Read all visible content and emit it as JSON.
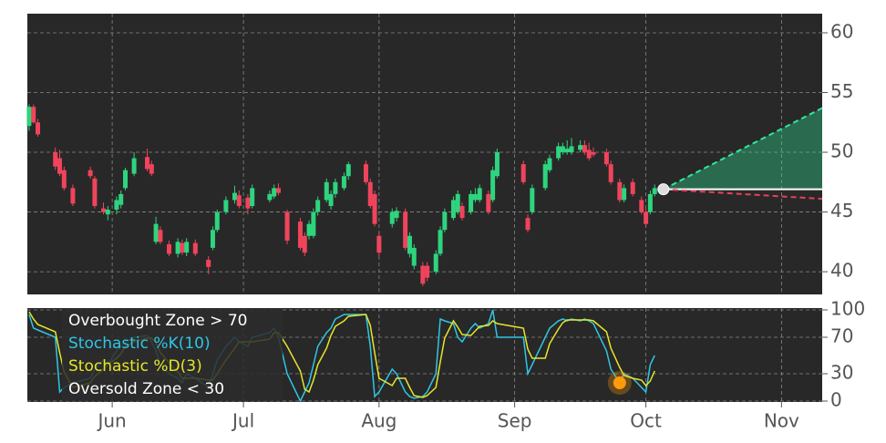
{
  "chart_data": [
    {
      "type": "candlestick",
      "x": [
        1,
        2,
        3,
        7,
        8,
        9,
        11,
        15,
        16,
        18,
        19,
        21,
        22,
        23,
        25,
        28,
        29,
        30,
        31,
        33,
        35,
        36,
        37,
        39,
        42,
        43,
        44,
        46,
        48,
        49,
        51,
        52,
        56,
        57,
        58,
        60,
        63,
        64,
        65,
        66,
        67,
        69,
        70,
        71,
        73,
        74,
        78,
        79,
        80,
        81,
        84,
        85,
        87,
        88,
        89,
        91,
        92,
        94,
        95,
        96,
        98,
        99,
        100,
        102,
        103,
        104,
        106,
        107,
        108,
        114,
        115,
        116,
        119,
        120,
        122,
        123,
        124,
        125,
        127,
        128,
        129,
        130,
        133,
        134,
        136,
        137,
        139,
        141,
        142,
        143,
        144
      ],
      "open": [
        52.2,
        53.8,
        52.5,
        50,
        49.5,
        48.5,
        47,
        48.5,
        47.8,
        45.3,
        44.8,
        45.2,
        45.6,
        47,
        48.2,
        49.6,
        49,
        42.5,
        43.5,
        42.3,
        41.5,
        42.4,
        41.6,
        42.4,
        41,
        42,
        43.5,
        45,
        46,
        46.4,
        46.2,
        45.5,
        46,
        46.3,
        47,
        45,
        44.2,
        43,
        43,
        43,
        45,
        46,
        45.5,
        46.5,
        47,
        48,
        49,
        47.5,
        46.5,
        43,
        44,
        44.5,
        45,
        41.5,
        40.5,
        40.5,
        40.5,
        40,
        41.5,
        43.5,
        44.5,
        45,
        45.5,
        45,
        46,
        46,
        46.5,
        46,
        48,
        49,
        44.5,
        45,
        47,
        48.5,
        49.5,
        50,
        50,
        50,
        50.2,
        50.6,
        50.2,
        50,
        50,
        49,
        47.5,
        46,
        47.5,
        46,
        45,
        45,
        46.5
      ],
      "high": [
        54,
        54,
        52.8,
        50.4,
        50.2,
        48.8,
        47.3,
        48.8,
        48,
        45.8,
        45.5,
        46.3,
        46.8,
        48.7,
        50,
        50.3,
        49.3,
        44.6,
        43.8,
        42.6,
        42.8,
        42.7,
        42.8,
        42.7,
        41.3,
        43.8,
        45.2,
        46.3,
        47.2,
        46.8,
        46.5,
        47.3,
        46.8,
        47.3,
        47.4,
        45.2,
        44.5,
        43.3,
        44.3,
        45.3,
        46.3,
        47.8,
        46.8,
        47.8,
        48.3,
        49.2,
        49.3,
        47.8,
        46.8,
        43.3,
        45.3,
        45.4,
        45.3,
        43.3,
        42.3,
        40.8,
        40.8,
        41.8,
        43.8,
        45.3,
        46.3,
        46.8,
        45.8,
        46.8,
        47,
        47.3,
        46.8,
        48.8,
        50.3,
        49.3,
        44.8,
        47.3,
        49.3,
        49.8,
        50.8,
        50.8,
        51,
        51.2,
        51,
        51,
        50.8,
        50.4,
        50.3,
        49.3,
        47.8,
        47.3,
        47.8,
        46.3,
        45.3,
        46.8,
        47.3
      ],
      "low": [
        51.8,
        52.4,
        51.3,
        48.5,
        48,
        46.8,
        45.5,
        47.8,
        45.3,
        44.8,
        44.3,
        44.8,
        45.3,
        46.8,
        48,
        48.4,
        48,
        42.3,
        42.3,
        41.3,
        41.2,
        41.4,
        41.3,
        41.3,
        39.8,
        41.8,
        43.3,
        44.8,
        45.7,
        45.3,
        44.8,
        45.3,
        45.8,
        46.1,
        46.4,
        42.3,
        41.8,
        41.3,
        42.7,
        42.8,
        44.7,
        45.8,
        45.2,
        46.2,
        46.8,
        47.7,
        47.3,
        45.3,
        43.8,
        41.3,
        43.7,
        44.2,
        41.8,
        41.2,
        40.2,
        38.8,
        39.2,
        39.8,
        41.3,
        43.3,
        44.3,
        44.8,
        44.3,
        44.8,
        45.8,
        45.8,
        44.8,
        45.8,
        47.8,
        47.3,
        43.3,
        44.8,
        46.8,
        48.3,
        49.3,
        49.8,
        49.8,
        49.8,
        50,
        49.8,
        49.3,
        49.6,
        48.8,
        47.3,
        45.8,
        45.8,
        46.3,
        44.8,
        43.8,
        44.8,
        46.3
      ],
      "close": [
        53.8,
        52.5,
        51.5,
        48.8,
        48.2,
        47,
        45.7,
        48,
        45.5,
        45,
        45.2,
        46,
        46.5,
        48.5,
        49.5,
        48.6,
        48.2,
        44,
        42.5,
        41.5,
        42.5,
        41.6,
        42.5,
        41.5,
        40.4,
        43.5,
        45,
        46,
        46.6,
        45.5,
        45.3,
        47,
        46.5,
        47,
        46.6,
        42.6,
        42,
        41.6,
        44,
        45,
        46,
        47.5,
        46.5,
        47.5,
        48,
        49,
        47.5,
        45.5,
        44,
        41.6,
        45,
        45.1,
        42,
        43,
        42,
        39,
        39.5,
        41.5,
        43.5,
        45,
        46,
        46.5,
        44.5,
        46.5,
        46.5,
        47,
        45,
        48.5,
        50,
        47.5,
        43.5,
        47,
        49,
        49.5,
        50.5,
        50.5,
        50.3,
        50.5,
        50.6,
        50,
        49.5,
        49.8,
        49,
        47.5,
        46,
        47,
        46.5,
        45,
        44,
        46.5,
        47
      ],
      "up_color": "#2ed47e",
      "down_color": "#f0445c",
      "xlim": [
        0.6,
        182.3
      ],
      "xticks": [
        {
          "value": 20,
          "label": "Jun"
        },
        {
          "value": 50,
          "label": "Jul"
        },
        {
          "value": 81,
          "label": "Aug"
        },
        {
          "value": 112,
          "label": "Sep"
        },
        {
          "value": 142,
          "label": "Oct"
        },
        {
          "value": 173,
          "label": "Nov"
        }
      ],
      "ylim": [
        38.1,
        61.6
      ],
      "yticks": [
        40,
        45,
        50,
        55,
        60
      ],
      "grid": true,
      "forecast": {
        "x": [
          146,
          182.3
        ],
        "upper": [
          46.9,
          53.7
        ],
        "base": [
          46.9,
          46.9
        ],
        "lower": [
          46.9,
          46.1
        ],
        "upper_color": "#2ee89c",
        "lower_color": "#e8405a",
        "base_color": "#ffffff"
      }
    },
    {
      "type": "line",
      "x": [
        1,
        2,
        3,
        7,
        8,
        9,
        11,
        15,
        16,
        18,
        19,
        21,
        22,
        23,
        25,
        28,
        29,
        30,
        31,
        33,
        35,
        36,
        37,
        39,
        42,
        43,
        44,
        46,
        48,
        49,
        51,
        52,
        56,
        57,
        58,
        60,
        63,
        64,
        65,
        66,
        67,
        69,
        70,
        71,
        73,
        74,
        78,
        79,
        80,
        81,
        84,
        85,
        87,
        88,
        89,
        91,
        92,
        94,
        95,
        96,
        98,
        99,
        100,
        102,
        103,
        104,
        106,
        107,
        108,
        114,
        115,
        116,
        119,
        120,
        122,
        123,
        124,
        125,
        127,
        128,
        129,
        130,
        133,
        134,
        136,
        137,
        139,
        141,
        142,
        143,
        144
      ],
      "annotations": [
        "Overbought Zone > 70",
        "Oversold Zone < 30"
      ],
      "series": [
        {
          "name": "Stochastic %K(10)",
          "color": "#2fc6e6",
          "values": [
            95,
            80,
            78,
            70,
            10,
            15,
            20,
            25,
            35,
            45,
            40,
            55,
            60,
            65,
            70,
            72,
            65,
            55,
            40,
            30,
            25,
            20,
            30,
            25,
            15,
            30,
            45,
            60,
            70,
            65,
            60,
            70,
            75,
            80,
            70,
            30,
            0,
            10,
            20,
            40,
            60,
            75,
            80,
            90,
            95,
            95,
            95,
            60,
            5,
            10,
            35,
            30,
            10,
            5,
            3,
            5,
            10,
            30,
            90,
            88,
            85,
            70,
            65,
            80,
            85,
            80,
            85,
            100,
            70,
            70,
            30,
            40,
            70,
            80,
            88,
            90,
            88,
            90,
            88,
            90,
            88,
            85,
            55,
            35,
            20,
            30,
            25,
            15,
            10,
            40,
            50
          ]
        },
        {
          "name": "Stochastic %D(3)",
          "color": "#e6e628",
          "values": [
            98,
            90,
            84,
            76,
            53,
            32,
            15,
            20,
            27,
            35,
            40,
            47,
            52,
            60,
            65,
            69,
            69,
            64,
            53,
            42,
            32,
            25,
            25,
            25,
            23,
            23,
            30,
            45,
            58,
            65,
            65,
            65,
            68,
            75,
            75,
            60,
            33,
            13,
            10,
            23,
            40,
            58,
            72,
            82,
            88,
            93,
            95,
            83,
            53,
            25,
            17,
            25,
            25,
            15,
            6,
            4,
            6,
            15,
            43,
            69,
            88,
            81,
            73,
            72,
            77,
            82,
            83,
            88,
            85,
            80,
            57,
            47,
            47,
            63,
            79,
            86,
            89,
            89,
            89,
            89,
            89,
            88,
            76,
            58,
            37,
            28,
            25,
            23,
            17,
            22,
            33
          ]
        }
      ],
      "signal": {
        "x": 136,
        "value": 20,
        "color": "#ff9a0a"
      },
      "ylim": [
        0,
        100
      ],
      "yticks": [
        0,
        30,
        70,
        100
      ],
      "grid": true
    }
  ]
}
